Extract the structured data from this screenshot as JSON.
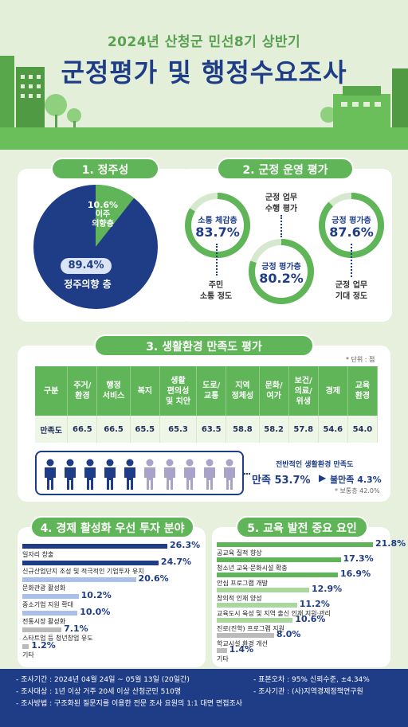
{
  "header": {
    "subtitle": "2024년 산청군 민선8기 상반기",
    "title": "군정평가 및 행정수요조사"
  },
  "section1": {
    "title": "1. 정주성",
    "move": {
      "pct": "10.6%",
      "label1": "이주",
      "label2": "의향층"
    },
    "stay": {
      "pct": "89.4%",
      "label": "정주의향 층"
    }
  },
  "section2": {
    "title": "2. 군정 운영 평가",
    "ring1": {
      "label": "소통 체감층",
      "value": "83.7%"
    },
    "ring2": {
      "label": "긍정 평가층",
      "value": "80.2%"
    },
    "ring3": {
      "label": "긍정 평가층",
      "value": "87.6%"
    },
    "side1": {
      "line1": "주민",
      "line2": "소통 정도"
    },
    "side2": {
      "line1": "군정 업무",
      "line2": "수행 평가"
    },
    "side3": {
      "line1": "군정 업무",
      "line2": "기대 정도"
    }
  },
  "section3": {
    "title": "3. 생활환경 만족도 평가",
    "unit": "* 단위 : 점",
    "headers": [
      [
        "구분"
      ],
      [
        "주거/",
        "환경"
      ],
      [
        "행정",
        "서비스"
      ],
      [
        "복지"
      ],
      [
        "생활",
        "편의성",
        "및 치안"
      ],
      [
        "도로/",
        "교통"
      ],
      [
        "지역",
        "정체성"
      ],
      [
        "문화/",
        "여가"
      ],
      [
        "보건/",
        "의료/",
        "위생"
      ],
      [
        "경제"
      ],
      [
        "교육",
        "환경"
      ]
    ],
    "row_label": "만족도",
    "values": [
      "66.5",
      "66.5",
      "65.5",
      "65.3",
      "63.5",
      "58.8",
      "58.2",
      "57.8",
      "54.6",
      "54.0"
    ],
    "overall_title": "전반적인 생활환경 만족도",
    "satisfied": "만족 53.7%",
    "dissatisfied": "불만족 4.3%",
    "normal": "* 보통층 42.0%",
    "person_filled": 5,
    "person_total": 10
  },
  "chart_data": [
    {
      "type": "bar",
      "title": "4. 경제 활성화 우선 투자 분야",
      "categories": [
        "일자리 창출",
        "신규산업단지 조성 및 적극적인 기업투자 유치",
        "문화관광 활성화",
        "중소기업 지원 확대",
        "전통시장 활성화",
        "스타트업 등 청년창업 유도",
        "기타"
      ],
      "values": [
        26.3,
        24.7,
        20.6,
        10.2,
        10.0,
        7.1,
        1.2
      ],
      "labels": [
        "26.3%",
        "24.7%",
        "20.6%",
        "10.2%",
        "10.0%",
        "7.1%",
        "1.2%"
      ],
      "colors": [
        "#1f3d87",
        "#1f3d87",
        "#aac0e8",
        "#aac0e8",
        "#aac0e8",
        "#bbbbbb",
        "#bbbbbb"
      ]
    },
    {
      "type": "bar",
      "title": "5. 교육 발전 중요 요인",
      "categories": [
        "공교육 질적 향상",
        "청소년 교육·문화시설 확충",
        "안심 프로그램 개발",
        "창의적 인재 양성",
        "교육도시 육성 및 지역 출신 인재 지원·관리",
        "진로(진학) 프로그램 지원",
        "학교시설 환경 개선",
        "기타"
      ],
      "values": [
        21.8,
        17.3,
        16.9,
        12.9,
        11.2,
        10.6,
        8.0,
        1.4
      ],
      "labels": [
        "21.8%",
        "17.3%",
        "16.9%",
        "12.9%",
        "11.2%",
        "10.6%",
        "8.0%",
        "1.4%"
      ],
      "colors": [
        "#5fb558",
        "#5fb558",
        "#5fb558",
        "#a8d89e",
        "#a8d89e",
        "#a8d89e",
        "#bbbbbb",
        "#bbbbbb"
      ]
    }
  ],
  "footer": {
    "period": "- 조사기간 : 2024년 04월 24일 ~ 05월 13일 (20일간)",
    "target": "- 조사대상 : 1년 이상 거주 20세 이상 산청군민 510명",
    "method": "- 조사방법 : 구조화된 질문지를 이용한 전문 조사 요원의 1:1 대면 면접조사",
    "error": "- 표본오차 : 95% 신뢰수준, ±4.34%",
    "org": "- 조사기관 : (사)지역경제정책연구원"
  },
  "colors": {
    "navy": "#1f3d87",
    "green": "#5fb558",
    "lightgreen": "#a8d89e",
    "gray": "#bbbbbb"
  }
}
